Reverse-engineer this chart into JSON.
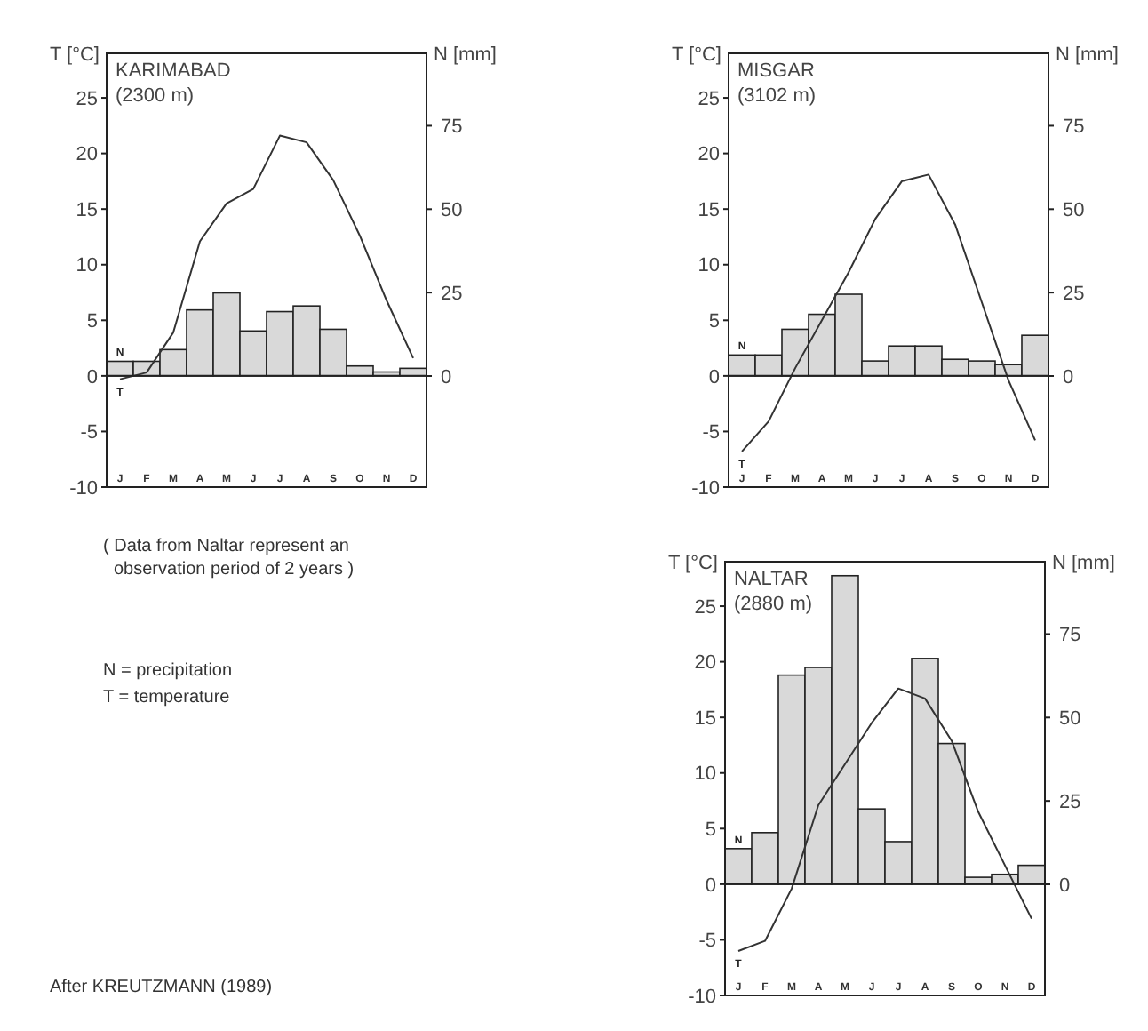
{
  "chart_data": [
    {
      "type": "bar",
      "title": "KARIMABAD",
      "subtitle": "(2300 m)",
      "ylabel": "T [°C]",
      "y2label": "N [mm]",
      "categories": [
        "J",
        "F",
        "M",
        "A",
        "M",
        "J",
        "J",
        "A",
        "S",
        "O",
        "N",
        "D"
      ],
      "ylim": [
        -10,
        29
      ],
      "yticks": [
        -10,
        -5,
        0,
        5,
        10,
        15,
        20,
        25
      ],
      "y2lim": [
        -33.3,
        96.7
      ],
      "y2ticks": [
        0,
        25,
        50,
        75
      ],
      "grid": false,
      "ref_lines": [
        {
          "axis": "y",
          "value": 0,
          "color": "#222222"
        }
      ],
      "series": [
        {
          "name": "N",
          "type": "bar",
          "axis": "y2",
          "color": "#d9d9d9",
          "values": [
            4.4,
            4.4,
            7.9,
            19.8,
            24.9,
            13.5,
            19.3,
            21,
            14,
            3,
            1.2,
            2.3
          ]
        },
        {
          "name": "T",
          "type": "line",
          "color": "#333333",
          "values": [
            -0.3,
            0.3,
            3.9,
            12.1,
            15.5,
            16.8,
            21.6,
            21,
            17.6,
            12.6,
            6.8,
            1.6
          ]
        }
      ]
    },
    {
      "type": "bar",
      "title": "MISGAR",
      "subtitle": "(3102 m)",
      "ylabel": "T [°C]",
      "y2label": "N [mm]",
      "categories": [
        "J",
        "F",
        "M",
        "A",
        "M",
        "J",
        "J",
        "A",
        "S",
        "O",
        "N",
        "D"
      ],
      "ylim": [
        -10,
        29
      ],
      "yticks": [
        -10,
        -5,
        0,
        5,
        10,
        15,
        20,
        25
      ],
      "y2lim": [
        -33.3,
        96.7
      ],
      "y2ticks": [
        0,
        25,
        50,
        75
      ],
      "grid": false,
      "ref_lines": [
        {
          "axis": "y",
          "value": 0,
          "color": "#222222"
        }
      ],
      "series": [
        {
          "name": "N",
          "type": "bar",
          "axis": "y2",
          "color": "#d9d9d9",
          "values": [
            6.3,
            6.3,
            14,
            18.5,
            24.5,
            4.5,
            9,
            9,
            5,
            4.5,
            3.4,
            12.2
          ]
        },
        {
          "name": "T",
          "type": "line",
          "color": "#333333",
          "values": [
            -6.8,
            -4.1,
            0.7,
            5,
            9.3,
            14.1,
            17.5,
            18.1,
            13.6,
            6.6,
            -0.4,
            -5.8
          ]
        }
      ]
    },
    {
      "type": "other",
      "annotations": [
        "( Data from Naltar represent an observation period of 2 years )",
        "N = precipitation",
        "T = temperature",
        "After KREUTZMANN (1989)"
      ]
    },
    {
      "type": "bar",
      "title": "NALTAR",
      "subtitle": "(2880 m)",
      "ylabel": "T [°C]",
      "y2label": "N [mm]",
      "categories": [
        "J",
        "F",
        "M",
        "A",
        "M",
        "J",
        "J",
        "A",
        "S",
        "O",
        "N",
        "D"
      ],
      "ylim": [
        -10,
        29
      ],
      "yticks": [
        -10,
        -5,
        0,
        5,
        10,
        15,
        20,
        25
      ],
      "y2lim": [
        -33.3,
        96.7
      ],
      "y2ticks": [
        0,
        25,
        50,
        75
      ],
      "grid": false,
      "ref_lines": [
        {
          "axis": "y",
          "value": 0,
          "color": "#222222"
        }
      ],
      "series": [
        {
          "name": "N",
          "type": "bar",
          "axis": "y2",
          "color": "#d9d9d9",
          "values": [
            10.7,
            15.5,
            62.7,
            65,
            92.5,
            22.6,
            12.8,
            67.7,
            42.2,
            2.1,
            3,
            5.7
          ]
        },
        {
          "name": "T",
          "type": "line",
          "color": "#333333",
          "values": [
            -6,
            -5.1,
            -0.4,
            7.1,
            10.8,
            14.5,
            17.6,
            16.7,
            12.9,
            6.5,
            1.7,
            -3.1
          ]
        }
      ]
    }
  ]
}
